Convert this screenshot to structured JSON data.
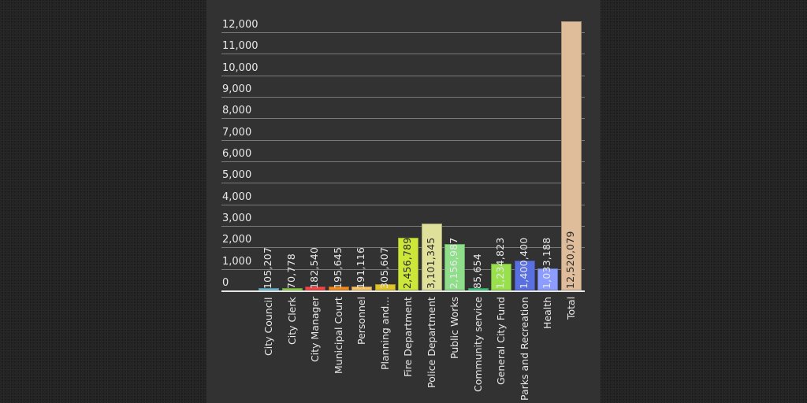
{
  "chart_data": {
    "type": "bar",
    "title": "",
    "xlabel": "",
    "ylabel": "",
    "ylim": [
      0,
      12500
    ],
    "grid": true,
    "legend": null,
    "y_ticks": [
      "0",
      "1,000",
      "2,000",
      "3,000",
      "4,000",
      "5,000",
      "6,000",
      "7,000",
      "8,000",
      "9,000",
      "10,000",
      "11,000",
      "12,000"
    ],
    "categories": [
      "City Council",
      "City Clerk",
      "City Manager",
      "Municipal Court",
      "Personnel",
      "Planning and...",
      "Fire Department",
      "Police Department",
      "Public Works",
      "Community service",
      "General City Fund",
      "Parks and Recreation",
      "Health",
      "Total"
    ],
    "values": [
      105207,
      70778,
      182540,
      195645,
      191116,
      305607,
      2456789,
      3101345,
      2156987,
      85654,
      1234823,
      1400400,
      1033188,
      12520079
    ],
    "value_labels": [
      "105,207",
      "70,778",
      "182,540",
      "195,645",
      "191,116",
      "305,607",
      "2,456,789",
      "3,101,345",
      "2,156,987",
      "85,654",
      "1,234,823",
      "1,400,400",
      "1,033,188",
      "12,520,079"
    ],
    "colors": [
      "#6ec1d6",
      "#8fd14f",
      "#f04848",
      "#f08a1e",
      "#f7c46a",
      "#e0c52a",
      "#cde63a",
      "#dfe09a",
      "#8ede8a",
      "#3fcf7f",
      "#98e04e",
      "#5a6fe0",
      "#8c9cff",
      "#dfbc9a"
    ],
    "label_colors": [
      "#e8e8e8",
      "#e8e8e8",
      "#e8e8e8",
      "#e8e8e8",
      "#e8e8e8",
      "#e8e8e8",
      "#2a2a2a",
      "#2a2a2a",
      "#e8e8e8",
      "#e8e8e8",
      "#e8e8e8",
      "#e8e8e8",
      "#e8e8e8",
      "#2a2a2a"
    ],
    "axis_unit_note": "y-axis scale in thousands"
  }
}
